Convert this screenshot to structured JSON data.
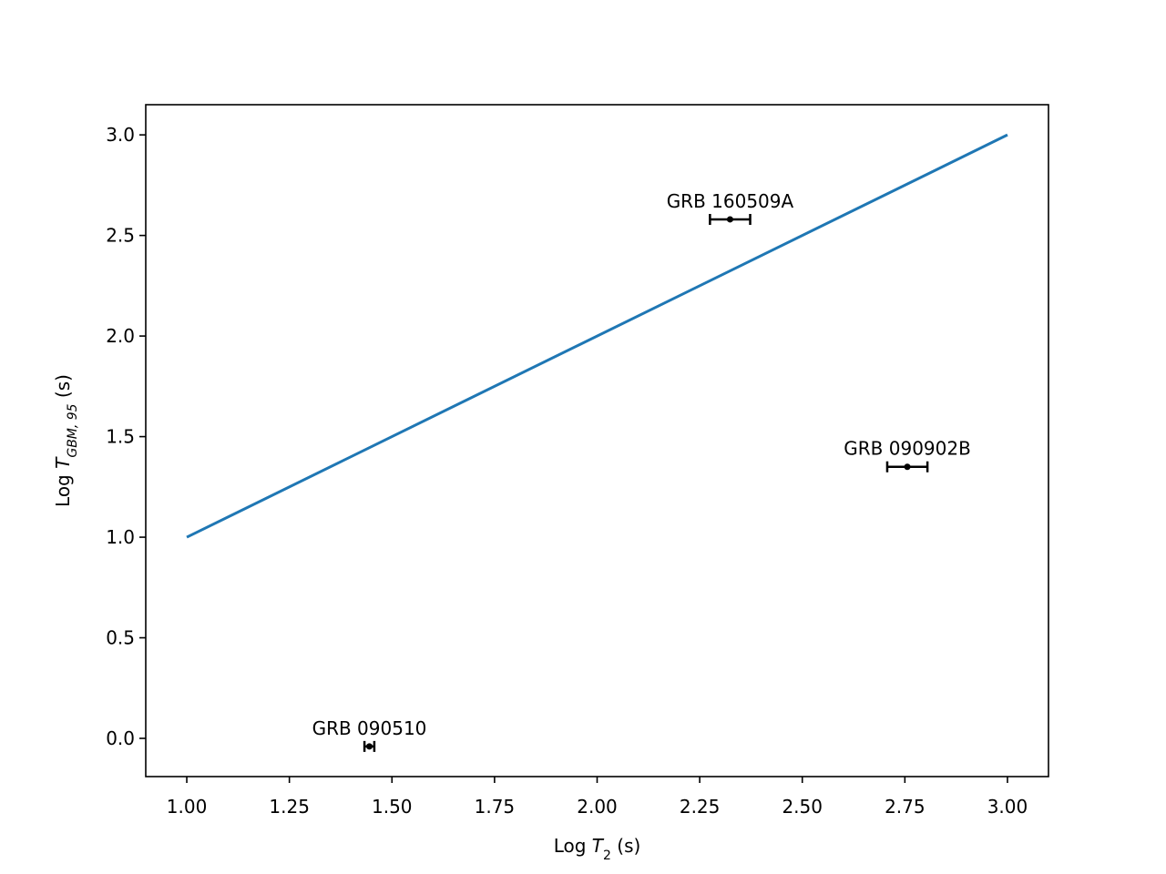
{
  "chart_data": {
    "type": "scatter",
    "x_label_parts": [
      "Log ",
      "T",
      "2",
      " (s)"
    ],
    "y_label_parts": [
      "Log ",
      "T",
      "GBM, 95",
      " (s)"
    ],
    "xlim": [
      0.9,
      3.1
    ],
    "ylim": [
      -0.19,
      3.15
    ],
    "xticks": [
      {
        "value": 1,
        "label": "1.00"
      },
      1.25,
      {
        "value": 1.5,
        "label": "1.50"
      },
      1.75,
      {
        "value": 2,
        "label": "2.00"
      },
      2.25,
      {
        "value": 2.5,
        "label": "2.50"
      },
      2.75,
      {
        "value": 3,
        "label": "3.00"
      }
    ],
    "yticks": [
      {
        "value": 0,
        "label": "0.0"
      },
      0.5,
      {
        "value": 1,
        "label": "1.0"
      },
      1.5,
      {
        "value": 2,
        "label": "2.0"
      },
      2.5,
      {
        "value": 3,
        "label": "3.0"
      }
    ],
    "series": [
      {
        "type": "line",
        "color": "#1f77b4",
        "x": [
          1,
          3
        ],
        "y": [
          1,
          3
        ]
      },
      {
        "type": "errorbar",
        "color": "#000000",
        "labels": [
          "GRB 090510",
          "GRB 160509A",
          "GRB 090902B"
        ],
        "x": [
          1.445,
          2.324,
          2.756
        ],
        "y": [
          -0.04,
          2.58,
          1.35
        ],
        "xerr": [
          0.012,
          0.049,
          0.049
        ]
      }
    ]
  }
}
